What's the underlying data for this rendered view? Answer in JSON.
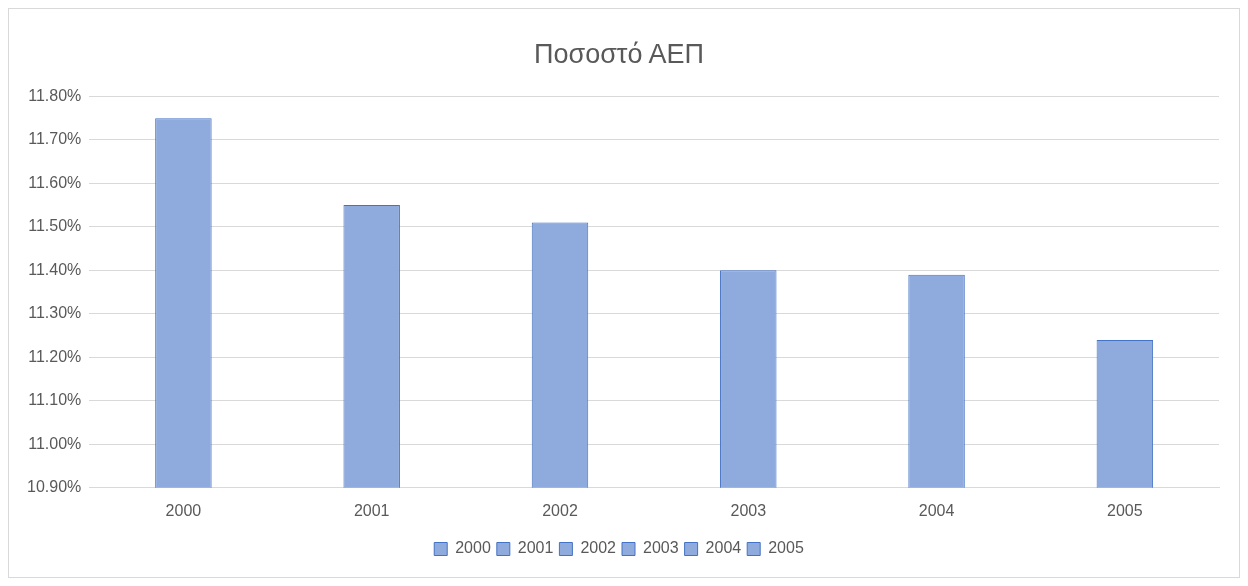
{
  "chart_data": {
    "type": "bar",
    "title": "Ποσοστό ΑΕΠ",
    "categories": [
      "2000",
      "2001",
      "2002",
      "2003",
      "2004",
      "2005"
    ],
    "series": [
      {
        "name": "2000",
        "color": "#8faadc",
        "values": [
          11.75,
          null,
          null,
          null,
          null,
          null
        ]
      },
      {
        "name": "2001",
        "color": "#8faadc",
        "values": [
          null,
          11.55,
          null,
          null,
          null,
          null
        ]
      },
      {
        "name": "2002",
        "color": "#8faadc",
        "values": [
          null,
          null,
          11.51,
          null,
          null,
          null
        ]
      },
      {
        "name": "2003",
        "color": "#8faadc",
        "values": [
          null,
          null,
          null,
          11.4,
          null,
          null
        ]
      },
      {
        "name": "2004",
        "color": "#8faadc",
        "values": [
          null,
          null,
          null,
          null,
          11.39,
          null
        ]
      },
      {
        "name": "2005",
        "color": "#8faadc",
        "values": [
          null,
          null,
          null,
          null,
          null,
          11.24
        ]
      }
    ],
    "ylim": [
      10.9,
      11.8
    ],
    "yticks": [
      {
        "value": 10.9,
        "label": "10.90%"
      },
      {
        "value": 11.0,
        "label": "11.00%"
      },
      {
        "value": 11.1,
        "label": "11.10%"
      },
      {
        "value": 11.2,
        "label": "11.20%"
      },
      {
        "value": 11.3,
        "label": "11.30%"
      },
      {
        "value": 11.4,
        "label": "11.40%"
      },
      {
        "value": 11.5,
        "label": "11.50%"
      },
      {
        "value": 11.6,
        "label": "11.60%"
      },
      {
        "value": 11.7,
        "label": "11.70%"
      },
      {
        "value": 11.8,
        "label": "11.80%"
      }
    ],
    "grid": "y",
    "legend": "bottom"
  }
}
